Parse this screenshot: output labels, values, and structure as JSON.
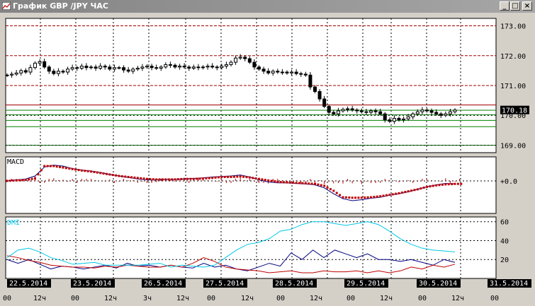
{
  "window": {
    "title": "График GBP /JPY ЧАС",
    "buttons": [
      "_",
      "□",
      "×"
    ]
  },
  "price_panel": {
    "y_labels": [
      "173.00",
      "172.00",
      "171.00",
      "170.00",
      "169.00"
    ],
    "current_price": "170.18"
  },
  "macd_panel": {
    "label": "MACD",
    "y_label": "+0.0"
  },
  "dmi_panel": {
    "label": "DMI",
    "y_labels": [
      "60",
      "40",
      "20"
    ]
  },
  "x_axis": {
    "dates": [
      "22.5.2014",
      "23.5.2014",
      "26.5.2014",
      "27.5.2014",
      "28.5.2014",
      "29.5.2014",
      "30.5.2014",
      "31.5.2014"
    ],
    "hour_labels": [
      "00",
      "12ч",
      "00",
      "12ч",
      "3ч",
      "12ч",
      "00",
      "12ч",
      "00",
      "12ч",
      "00",
      "12ч",
      "00",
      "12ч",
      "00"
    ]
  },
  "colors": {
    "background": "#ffffff",
    "grid": "#000000",
    "resistance": "#a00000",
    "support": "#008000",
    "macd_line": "#000080",
    "signal_line": "#c00000",
    "dmi_plus": "#000080",
    "dmi_minus": "#c00000",
    "adx": "#00c8e8",
    "dmi_label": "#00c8e8"
  },
  "chart_data": [
    {
      "type": "candlestick",
      "ylim": [
        168.75,
        173.25
      ],
      "y_ticks": [
        173,
        172,
        171,
        170,
        169
      ],
      "close": [
        171.35,
        171.38,
        171.42,
        171.5,
        171.45,
        171.6,
        171.75,
        171.8,
        171.62,
        171.48,
        171.4,
        171.48,
        171.45,
        171.55,
        171.6,
        171.58,
        171.65,
        171.6,
        171.62,
        171.58,
        171.65,
        171.62,
        171.55,
        171.6,
        171.6,
        171.52,
        171.48,
        171.55,
        171.58,
        171.62,
        171.65,
        171.6,
        171.58,
        171.62,
        171.7,
        171.68,
        171.62,
        171.65,
        171.62,
        171.58,
        171.62,
        171.6,
        171.62,
        171.65,
        171.62,
        171.6,
        171.65,
        171.7,
        171.78,
        171.92,
        171.95,
        171.9,
        171.78,
        171.62,
        171.55,
        171.48,
        171.42,
        171.48,
        171.45,
        171.45,
        171.42,
        171.45,
        171.4,
        171.38,
        171.35,
        170.95,
        170.8,
        170.55,
        170.3,
        170.1,
        170.05,
        170.15,
        170.2,
        170.22,
        170.18,
        170.15,
        170.12,
        170.1,
        170.15,
        170.12,
        170.05,
        169.85,
        169.8,
        169.9,
        169.85,
        169.88,
        169.95,
        170.05,
        170.12,
        170.18,
        170.15,
        170.1,
        170.05,
        170.0,
        170.05,
        170.12,
        170.18
      ]
    },
    {
      "type": "line",
      "series": [
        {
          "values": [
            0.0,
            0.02,
            0.04,
            0.1,
            0.28,
            0.32,
            0.3,
            0.25,
            0.22,
            0.2,
            0.17,
            0.13,
            0.1,
            0.07,
            0.04,
            0.02,
            0.02,
            0.03,
            0.03,
            0.04,
            0.05,
            0.06,
            0.08,
            0.09,
            0.1,
            0.12,
            0.08,
            0.02,
            -0.02,
            -0.04,
            -0.04,
            -0.05,
            -0.06,
            -0.08,
            -0.14,
            -0.26,
            -0.36,
            -0.4,
            -0.38,
            -0.35,
            -0.33,
            -0.29,
            -0.26,
            -0.22,
            -0.17,
            -0.12,
            -0.08,
            -0.05,
            -0.06
          ]
        },
        {
          "values": [
            0.0,
            0.01,
            0.02,
            0.05,
            0.3,
            0.3,
            0.27,
            0.24,
            0.21,
            0.19,
            0.16,
            0.13,
            0.1,
            0.08,
            0.06,
            0.04,
            0.03,
            0.03,
            0.03,
            0.04,
            0.04,
            0.05,
            0.06,
            0.08,
            0.08,
            0.09,
            0.07,
            0.04,
            0.01,
            -0.02,
            -0.03,
            -0.04,
            -0.05,
            -0.06,
            -0.1,
            -0.2,
            -0.33,
            -0.34,
            -0.34,
            -0.33,
            -0.31,
            -0.28,
            -0.25,
            -0.21,
            -0.17,
            -0.12,
            -0.09,
            -0.07,
            -0.06
          ]
        }
      ]
    },
    {
      "type": "line",
      "ylim": [
        0,
        65
      ],
      "y_ticks": [
        60,
        40,
        20
      ],
      "series": [
        {
          "values": [
            20,
            16,
            20,
            15,
            10,
            13,
            12,
            10,
            12,
            14,
            11,
            16,
            13,
            14,
            12,
            14,
            12,
            11,
            16,
            12,
            14,
            10,
            8,
            12,
            16,
            13,
            27,
            20,
            30,
            22,
            30,
            26,
            22,
            26,
            20,
            20,
            18,
            20,
            17,
            14,
            20,
            17
          ]
        },
        {
          "values": [
            24,
            22,
            19,
            17,
            14,
            13,
            12,
            12,
            11,
            13,
            12,
            14,
            13,
            12,
            12,
            14,
            12,
            16,
            22,
            18,
            12,
            10,
            9,
            8,
            6,
            7,
            8,
            6,
            6,
            8,
            7,
            7,
            8,
            6,
            8,
            6,
            8,
            12,
            10,
            14,
            12,
            15
          ]
        },
        {
          "values": [
            22,
            30,
            32,
            28,
            22,
            19,
            15,
            16,
            17,
            14,
            14,
            14,
            14,
            15,
            16,
            12,
            14,
            13,
            12,
            14,
            22,
            30,
            36,
            38,
            42,
            50,
            52,
            57,
            60,
            60,
            58,
            56,
            58,
            60,
            57,
            50,
            42,
            36,
            32,
            30,
            29,
            28
          ]
        }
      ]
    }
  ]
}
